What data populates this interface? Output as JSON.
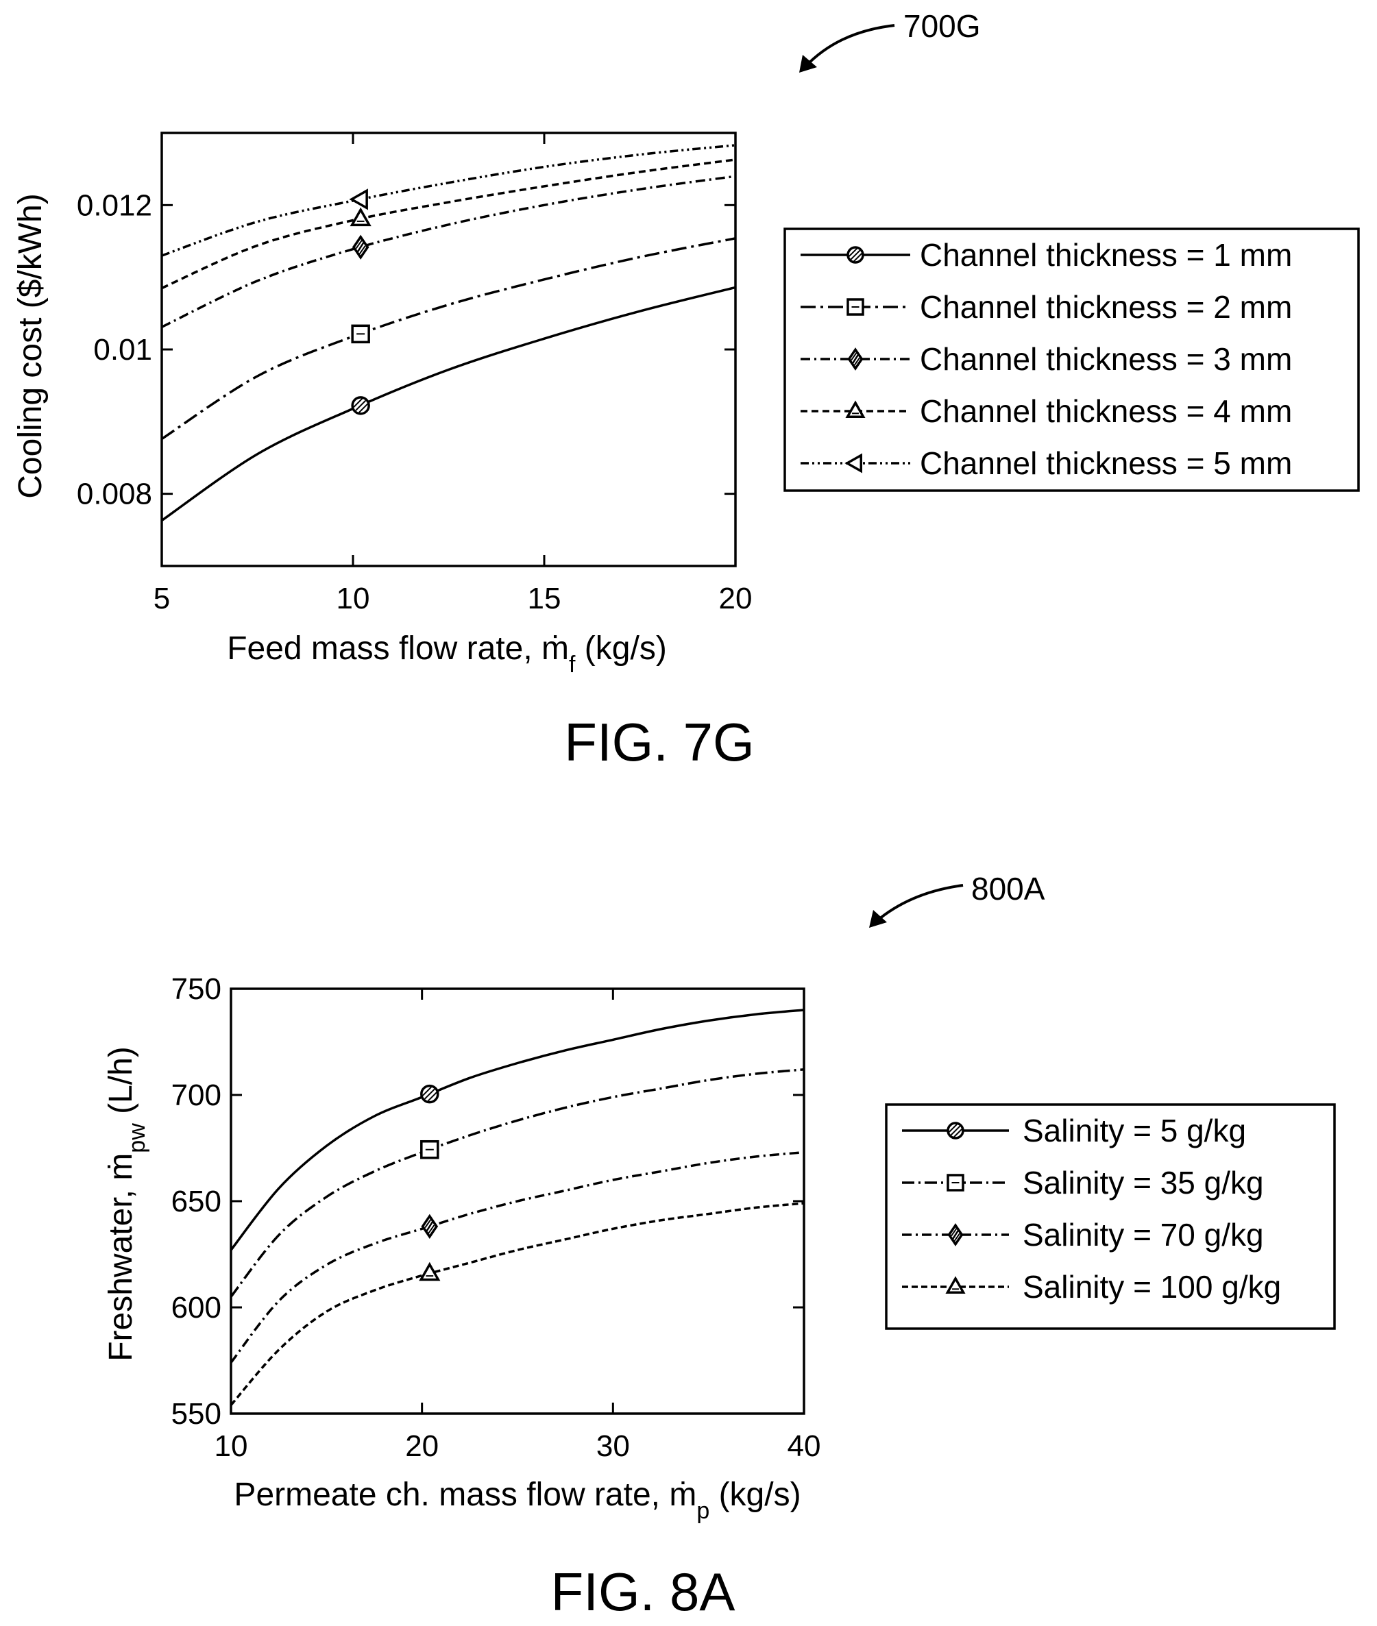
{
  "figures": [
    {
      "ref_label": "700G",
      "caption": "FIG. 7G"
    },
    {
      "ref_label": "800A",
      "caption": "FIG. 8A"
    }
  ],
  "chart_data": [
    {
      "type": "line",
      "title": "",
      "xlabel": "Feed mass flow rate, ṁ",
      "xlabel_sub": "f",
      "xlabel_suffix": " (kg/s)",
      "ylabel": "Cooling cost ($/kWh)",
      "ylabel_sub": "",
      "ylabel_suffix": "",
      "xlim": [
        5,
        20
      ],
      "ylim": [
        0.007,
        0.013
      ],
      "xticks": [
        5,
        10,
        15,
        20
      ],
      "xtick_labels": [
        "5",
        "10",
        "15",
        "20"
      ],
      "yticks": [
        0.008,
        0.01,
        0.012
      ],
      "ytick_labels": [
        "0.008",
        "0.01",
        "0.012"
      ],
      "grid": false,
      "legend_position": "right",
      "marker_x": 10.2,
      "series": [
        {
          "name": "Channel thickness = 1 mm",
          "marker": "circle",
          "dash": "",
          "x": [
            5,
            7.5,
            10,
            12.5,
            15,
            17.5,
            20
          ],
          "y": [
            0.00763,
            0.00855,
            0.00918,
            0.00972,
            0.01015,
            0.01053,
            0.01086
          ]
        },
        {
          "name": "Channel thickness = 2 mm",
          "marker": "square",
          "dash": "22 7 4 7",
          "x": [
            5,
            7.5,
            10,
            12.5,
            15,
            17.5,
            20
          ],
          "y": [
            0.00876,
            0.00963,
            0.01018,
            0.01062,
            0.01097,
            0.01128,
            0.01154
          ]
        },
        {
          "name": "Channel thickness = 3 mm",
          "marker": "diamond",
          "dash": "14 6 3 6",
          "x": [
            5,
            7.5,
            10,
            12.5,
            15,
            17.5,
            20
          ],
          "y": [
            0.01031,
            0.01095,
            0.01139,
            0.01173,
            0.012,
            0.01222,
            0.0124
          ]
        },
        {
          "name": "Channel thickness = 4 mm",
          "marker": "triangle",
          "dash": "10 6",
          "x": [
            5,
            7.5,
            10,
            12.5,
            15,
            17.5,
            20
          ],
          "y": [
            0.01085,
            0.01144,
            0.01179,
            0.01204,
            0.01226,
            0.01246,
            0.01263
          ]
        },
        {
          "name": "Channel thickness = 5 mm",
          "marker": "triangle-left",
          "dash": "12 5 3 5 3 5",
          "x": [
            5,
            7.5,
            10,
            12.5,
            15,
            17.5,
            20
          ],
          "y": [
            0.0113,
            0.01177,
            0.01206,
            0.01231,
            0.01253,
            0.0127,
            0.01283
          ]
        }
      ]
    },
    {
      "type": "line",
      "title": "",
      "xlabel": "Permeate ch. mass flow rate, ṁ",
      "xlabel_sub": "p",
      "xlabel_suffix": " (kg/s)",
      "ylabel": "Freshwater, ṁ",
      "ylabel_sub": "pw",
      "ylabel_suffix": " (L/h)",
      "xlim": [
        10,
        40
      ],
      "ylim": [
        550,
        750
      ],
      "xticks": [
        10,
        20,
        30,
        40
      ],
      "xtick_labels": [
        "10",
        "20",
        "30",
        "40"
      ],
      "yticks": [
        550,
        600,
        650,
        700,
        750
      ],
      "ytick_labels": [
        "550",
        "600",
        "650",
        "700",
        "750"
      ],
      "grid": false,
      "legend_position": "right",
      "marker_x": 20.4,
      "series": [
        {
          "name": "Salinity = 5 g/kg",
          "marker": "circle",
          "dash": "",
          "x": [
            10,
            12.5,
            15,
            17.5,
            20,
            22.5,
            25,
            27.5,
            30,
            32.5,
            35,
            37.5,
            40
          ],
          "y": [
            627,
            656,
            676,
            690,
            699,
            708,
            715,
            721,
            726,
            731,
            735,
            738,
            740
          ]
        },
        {
          "name": "Salinity = 35 g/kg",
          "marker": "square",
          "dash": "18 6 3 6",
          "x": [
            10,
            12.5,
            15,
            17.5,
            20,
            22.5,
            25,
            27.5,
            30,
            32.5,
            35,
            37.5,
            40
          ],
          "y": [
            605,
            634,
            652,
            664,
            673,
            681,
            688,
            694,
            699,
            703,
            707,
            710,
            712
          ]
        },
        {
          "name": "Salinity = 70 g/kg",
          "marker": "diamond",
          "dash": "14 6 3 6",
          "x": [
            10,
            12.5,
            15,
            17.5,
            20,
            22.5,
            25,
            27.5,
            30,
            32.5,
            35,
            37.5,
            40
          ],
          "y": [
            574,
            603,
            620,
            630,
            637,
            644,
            650,
            655,
            660,
            664,
            668,
            671,
            673
          ]
        },
        {
          "name": "Salinity = 100 g/kg",
          "marker": "triangle",
          "dash": "9 5",
          "x": [
            10,
            12.5,
            15,
            17.5,
            20,
            22.5,
            25,
            27.5,
            30,
            32.5,
            35,
            37.5,
            40
          ],
          "y": [
            554,
            580,
            598,
            608,
            615,
            621,
            627,
            632,
            637,
            641,
            644,
            647,
            649
          ]
        }
      ]
    }
  ]
}
